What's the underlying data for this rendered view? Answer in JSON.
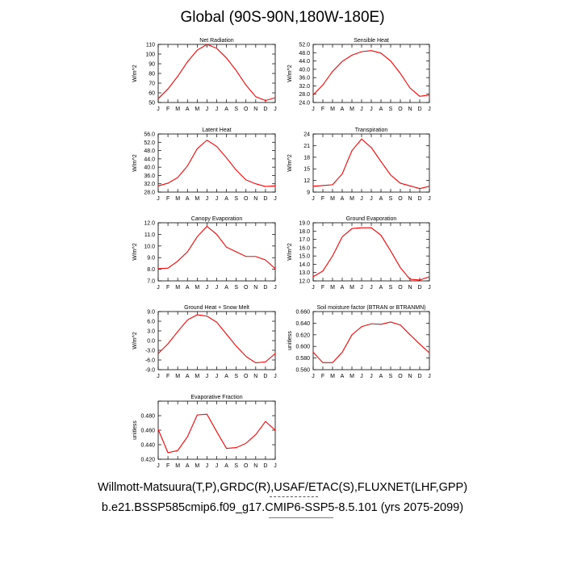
{
  "page": {
    "title": "Global (90S-90N,180W-180E)",
    "footer_line1": "Willmott-Matsuura(T,P),GRDC(R),USAF/ETAC(S),FLUXNET(LHF,GPP)",
    "footer_line2": "b.e21.BSSP585cmip6.f09_g17.CMIP6-SSP5-8.5.101 (yrs 2075-2099)"
  },
  "colors": {
    "series": "#ff0000",
    "axis": "#000000"
  },
  "chart_data": [
    {
      "type": "line",
      "title": "Net Radiation",
      "ylabel": "W/m^2",
      "categories": [
        "J",
        "F",
        "M",
        "A",
        "M",
        "J",
        "J",
        "A",
        "S",
        "O",
        "N",
        "D",
        "J"
      ],
      "ylim": [
        50,
        110
      ],
      "yticks": [
        50,
        60,
        70,
        80,
        90,
        100,
        110
      ],
      "ytick_labels": [
        "50",
        "60",
        "70",
        "80",
        "90",
        "100",
        "110"
      ],
      "values": [
        54,
        64,
        77,
        92,
        104,
        110,
        106,
        96,
        83,
        68,
        56,
        52,
        55
      ]
    },
    {
      "type": "line",
      "title": "Sensible Heat",
      "ylabel": "W/m^2",
      "categories": [
        "J",
        "F",
        "M",
        "A",
        "M",
        "J",
        "J",
        "A",
        "S",
        "O",
        "N",
        "D",
        "J"
      ],
      "ylim": [
        24,
        52
      ],
      "yticks": [
        24,
        28,
        32,
        36,
        40,
        44,
        48,
        52
      ],
      "ytick_labels": [
        "24.0",
        "28.0",
        "32.0",
        "36.0",
        "40.0",
        "44.0",
        "48.0",
        "52.0"
      ],
      "values": [
        27.6,
        32.5,
        39.0,
        43.8,
        46.8,
        48.5,
        49.0,
        47.8,
        44.0,
        38.0,
        31.0,
        27.0,
        27.6
      ]
    },
    {
      "type": "line",
      "title": "Latent Heat",
      "ylabel": "W/m^2",
      "categories": [
        "J",
        "F",
        "M",
        "A",
        "M",
        "J",
        "J",
        "A",
        "S",
        "O",
        "N",
        "D",
        "J"
      ],
      "ylim": [
        28,
        56
      ],
      "yticks": [
        28,
        32,
        36,
        40,
        44,
        48,
        52,
        56
      ],
      "ytick_labels": [
        "28.0",
        "32.0",
        "36.0",
        "40.0",
        "44.0",
        "48.0",
        "52.0",
        "56.0"
      ],
      "values": [
        31.0,
        32.3,
        35.0,
        40.6,
        48.9,
        53.0,
        50.0,
        44.5,
        38.6,
        33.9,
        32.0,
        30.7,
        31.0
      ]
    },
    {
      "type": "line",
      "title": "Transpiration",
      "ylabel": "W/m^2",
      "categories": [
        "J",
        "F",
        "M",
        "A",
        "M",
        "J",
        "J",
        "A",
        "S",
        "O",
        "N",
        "D",
        "J"
      ],
      "ylim": [
        9,
        24
      ],
      "yticks": [
        9,
        12,
        15,
        18,
        21,
        24
      ],
      "ytick_labels": [
        "9",
        "12",
        "15",
        "18",
        "21",
        "24"
      ],
      "values": [
        10.5,
        10.7,
        10.9,
        13.7,
        19.7,
        22.7,
        20.5,
        16.9,
        13.4,
        11.3,
        10.6,
        9.9,
        10.5
      ]
    },
    {
      "type": "line",
      "title": "Canopy Evaporation",
      "ylabel": "W/m^2",
      "categories": [
        "J",
        "F",
        "M",
        "A",
        "M",
        "J",
        "J",
        "A",
        "S",
        "O",
        "N",
        "D",
        "J"
      ],
      "ylim": [
        7,
        12
      ],
      "yticks": [
        7,
        8,
        9,
        10,
        11,
        12
      ],
      "ytick_labels": [
        "7.0",
        "8.0",
        "9.0",
        "10.0",
        "11.0",
        "12.0"
      ],
      "values": [
        8.05,
        8.1,
        8.7,
        9.5,
        10.8,
        11.7,
        11.0,
        9.9,
        9.5,
        9.1,
        9.1,
        8.8,
        8.05
      ]
    },
    {
      "type": "line",
      "title": "Ground Evaporation",
      "ylabel": "W/m^2",
      "categories": [
        "J",
        "F",
        "M",
        "A",
        "M",
        "J",
        "J",
        "A",
        "S",
        "O",
        "N",
        "D",
        "J"
      ],
      "ylim": [
        12,
        19
      ],
      "yticks": [
        12,
        13,
        14,
        15,
        16,
        17,
        18,
        19
      ],
      "ytick_labels": [
        "12.0",
        "13.0",
        "14.0",
        "15.0",
        "16.0",
        "17.0",
        "18.0",
        "19.0"
      ],
      "values": [
        12.5,
        13.2,
        15.0,
        17.3,
        18.3,
        18.4,
        18.4,
        17.5,
        15.6,
        13.6,
        12.2,
        12.1,
        12.5
      ]
    },
    {
      "type": "line",
      "title": "Ground Heat + Snow Melt",
      "ylabel": "W/m^2",
      "categories": [
        "J",
        "F",
        "M",
        "A",
        "M",
        "J",
        "J",
        "A",
        "S",
        "O",
        "N",
        "D",
        "J"
      ],
      "ylim": [
        -9,
        9
      ],
      "yticks": [
        -9,
        -6,
        -3,
        0,
        3,
        6,
        9
      ],
      "ytick_labels": [
        "-9.0",
        "-6.0",
        "-3.0",
        "0.0",
        "3.0",
        "6.0",
        "9.0"
      ],
      "values": [
        -4.0,
        -1.0,
        2.8,
        6.4,
        8.0,
        7.6,
        5.7,
        2.0,
        -1.7,
        -4.9,
        -6.9,
        -6.6,
        -4.0
      ]
    },
    {
      "type": "line",
      "title": "Soil moisture factor (BTRAN or BTRANMN)",
      "ylabel": "unitless",
      "categories": [
        "J",
        "F",
        "M",
        "A",
        "M",
        "J",
        "J",
        "A",
        "S",
        "O",
        "N",
        "D",
        "J"
      ],
      "ylim": [
        0.56,
        0.66
      ],
      "yticks": [
        0.56,
        0.58,
        0.6,
        0.62,
        0.64,
        0.66
      ],
      "ytick_labels": [
        "0.560",
        "0.580",
        "0.600",
        "0.620",
        "0.640",
        "0.660"
      ],
      "values": [
        0.59,
        0.572,
        0.572,
        0.59,
        0.62,
        0.634,
        0.639,
        0.638,
        0.642,
        0.637,
        0.62,
        0.604,
        0.589
      ]
    },
    {
      "type": "line",
      "title": "Evaporative Fraction",
      "ylabel": "unitless",
      "categories": [
        "J",
        "F",
        "M",
        "A",
        "M",
        "J",
        "J",
        "A",
        "S",
        "O",
        "N",
        "D",
        "J"
      ],
      "ylim": [
        0.42,
        0.5
      ],
      "yticks": [
        0.42,
        0.44,
        0.46,
        0.48,
        0.5
      ],
      "ytick_labels": [
        "0.420",
        "0.440",
        "0.460",
        "0.480",
        ""
      ],
      "values": [
        0.461,
        0.429,
        0.432,
        0.451,
        0.481,
        0.482,
        0.458,
        0.435,
        0.436,
        0.442,
        0.454,
        0.472,
        0.46
      ]
    }
  ]
}
